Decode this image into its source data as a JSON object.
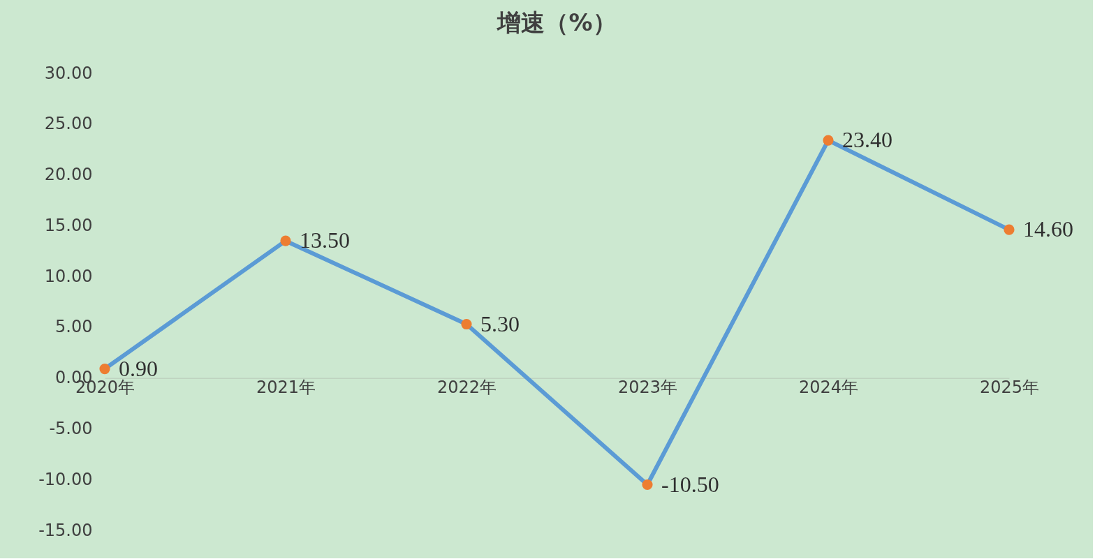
{
  "chart_data": {
    "type": "line",
    "title": "增速（%）",
    "categories": [
      "2020年",
      "2021年",
      "2022年",
      "2023年",
      "2024年",
      "2025年"
    ],
    "series": [
      {
        "color": "#5b9bd5",
        "colors": [
          "#ed7d31",
          "#ed7d31",
          "#ed7d31",
          "#ed7d31",
          "#ed7d31",
          "#ed7d31"
        ],
        "values": [
          0.9,
          13.5,
          5.3,
          -10.5,
          23.4,
          14.6
        ],
        "value_labels": [
          "0.90",
          "13.50",
          "5.30",
          "-10.50",
          "23.40",
          "14.60"
        ]
      }
    ],
    "ylim": [
      -15,
      30
    ],
    "yticks": [
      {
        "value": -15,
        "label": "-15.00"
      },
      {
        "value": -10,
        "label": "-10.00"
      },
      {
        "value": -5,
        "label": "-5.00"
      },
      {
        "value": 0,
        "label": "0.00"
      },
      {
        "value": 5,
        "label": "5.00"
      },
      {
        "value": 10,
        "label": "10.00"
      },
      {
        "value": 15,
        "label": "15.00"
      },
      {
        "value": 20,
        "label": "20.00"
      },
      {
        "value": 25,
        "label": "25.00"
      },
      {
        "value": 30,
        "label": "30.00"
      }
    ],
    "grid": false,
    "marker": "circle",
    "line_style": "solid"
  }
}
